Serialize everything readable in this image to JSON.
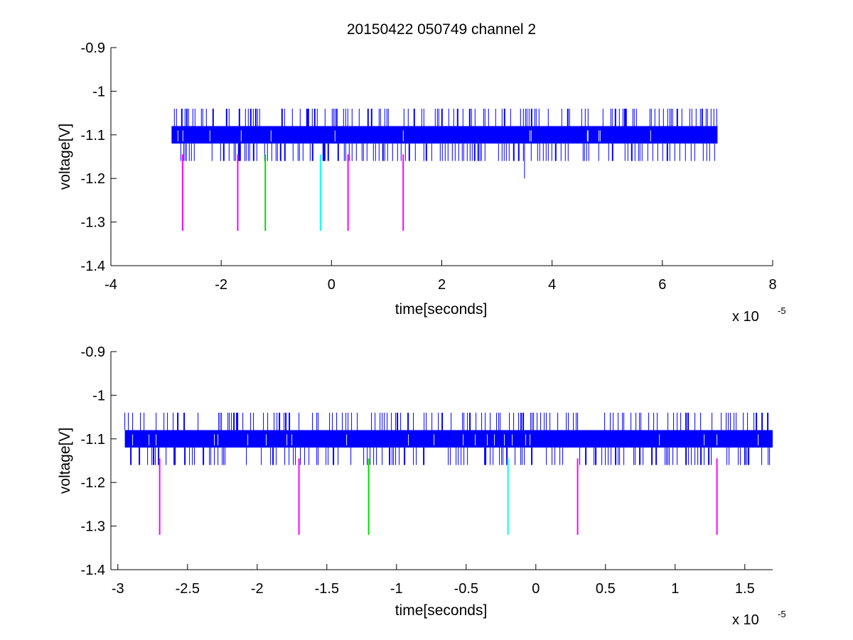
{
  "figure": {
    "title": "20150422 050749 channel 2"
  },
  "chart_data": [
    {
      "type": "line",
      "title": "20150422 050749 channel 2",
      "xlabel": "time[seconds]",
      "ylabel": "voltage[V]",
      "x_exponent_label": "x 10",
      "x_exponent": "-5",
      "xlim": [
        -4,
        8
      ],
      "ylim": [
        -1.4,
        -0.9
      ],
      "x_ticks": [
        -4,
        -2,
        0,
        2,
        4,
        6,
        8
      ],
      "x_tick_labels": [
        "-4",
        "-2",
        "0",
        "2",
        "4",
        "6",
        "8"
      ],
      "y_ticks": [
        -0.9,
        -1,
        -1.1,
        -1.2,
        -1.3,
        -1.4
      ],
      "y_tick_labels": [
        "-0.9",
        "-1",
        "-1.1",
        "-1.2",
        "-1.3",
        "-1.4"
      ],
      "grid": false,
      "series": [
        {
          "color": "#0000ff",
          "kind": "noisy-band",
          "x_range": [
            -2.9,
            7.0
          ],
          "band": [
            -1.12,
            -1.08
          ],
          "spike_range": [
            -1.16,
            -1.04
          ],
          "outlier": {
            "x": 3.5,
            "y": -1.2
          }
        }
      ],
      "markers": [
        {
          "x": -2.7,
          "y_top": -1.145,
          "y_bottom": -1.32,
          "color": "#ff00ff"
        },
        {
          "x": -1.7,
          "y_top": -1.145,
          "y_bottom": -1.32,
          "color": "#ff00ff"
        },
        {
          "x": -1.2,
          "y_top": -1.145,
          "y_bottom": -1.32,
          "color": "#00dd00"
        },
        {
          "x": -0.2,
          "y_top": -1.145,
          "y_bottom": -1.32,
          "color": "#00ffff"
        },
        {
          "x": 0.3,
          "y_top": -1.145,
          "y_bottom": -1.32,
          "color": "#ff00ff"
        },
        {
          "x": 1.3,
          "y_top": -1.145,
          "y_bottom": -1.32,
          "color": "#ff00ff"
        }
      ]
    },
    {
      "type": "line",
      "xlabel": "time[seconds]",
      "ylabel": "voltage[V]",
      "x_exponent_label": "x 10",
      "x_exponent": "-5",
      "xlim": [
        -3.05,
        1.7
      ],
      "ylim": [
        -1.4,
        -0.9
      ],
      "x_ticks": [
        -3,
        -2.5,
        -2,
        -1.5,
        -1,
        -0.5,
        0,
        0.5,
        1,
        1.5
      ],
      "x_tick_labels": [
        "-3",
        "-2.5",
        "-2",
        "-1.5",
        "-1",
        "-0.5",
        "0",
        "0.5",
        "1",
        "1.5"
      ],
      "y_ticks": [
        -0.9,
        -1,
        -1.1,
        -1.2,
        -1.3,
        -1.4
      ],
      "y_tick_labels": [
        "-0.9",
        "-1",
        "-1.1",
        "-1.2",
        "-1.3",
        "-1.4"
      ],
      "grid": false,
      "series": [
        {
          "color": "#0000ff",
          "kind": "noisy-band",
          "x_range": [
            -2.95,
            1.7
          ],
          "band": [
            -1.12,
            -1.08
          ],
          "spike_range": [
            -1.16,
            -1.04
          ]
        }
      ],
      "markers": [
        {
          "x": -2.7,
          "y_top": -1.145,
          "y_bottom": -1.32,
          "color": "#ff00ff"
        },
        {
          "x": -1.7,
          "y_top": -1.145,
          "y_bottom": -1.32,
          "color": "#ff00ff"
        },
        {
          "x": -1.2,
          "y_top": -1.145,
          "y_bottom": -1.32,
          "color": "#00dd00"
        },
        {
          "x": -0.2,
          "y_top": -1.145,
          "y_bottom": -1.32,
          "color": "#00ffff"
        },
        {
          "x": 0.3,
          "y_top": -1.145,
          "y_bottom": -1.32,
          "color": "#ff00ff"
        },
        {
          "x": 1.3,
          "y_top": -1.145,
          "y_bottom": -1.32,
          "color": "#ff00ff"
        }
      ]
    }
  ]
}
